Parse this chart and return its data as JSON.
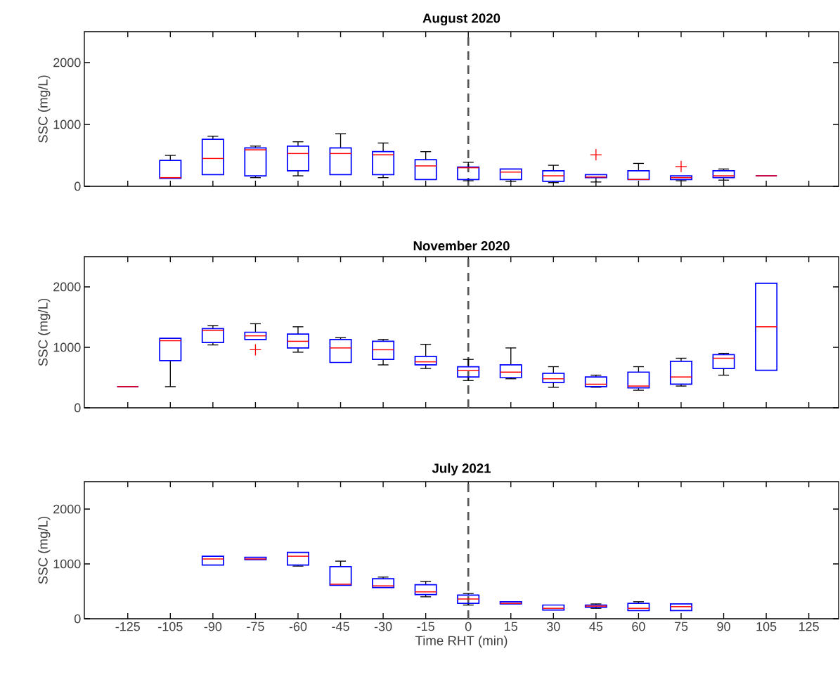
{
  "chart_data": [
    {
      "type": "box",
      "title": "August 2020",
      "ylabel": "SSC (mg/L)",
      "categories": [
        "-125",
        "-105",
        "-90",
        "-75",
        "-60",
        "-45",
        "-30",
        "-15",
        "0",
        "15",
        "30",
        "45",
        "60",
        "75",
        "90",
        "105",
        "125"
      ],
      "ylim": [
        0,
        2500
      ],
      "yticks": [
        0,
        1000,
        2000
      ],
      "tick_labels": "y",
      "ref_lines": [
        {
          "axis": "x",
          "value": "0",
          "color": "#555555",
          "line_style": "dashed"
        }
      ],
      "series": [
        {
          "color": "#0000ff",
          "boxes": [
            null,
            {
              "low": 130,
              "q1": 130,
              "median": 140,
              "q3": 420,
              "high": 500
            },
            {
              "low": 190,
              "q1": 190,
              "median": 450,
              "q3": 760,
              "high": 810
            },
            {
              "low": 140,
              "q1": 170,
              "median": 590,
              "q3": 620,
              "high": 650
            },
            {
              "low": 170,
              "q1": 250,
              "median": 530,
              "q3": 650,
              "high": 720
            },
            {
              "low": 190,
              "q1": 190,
              "median": 530,
              "q3": 620,
              "high": 850
            },
            {
              "low": 140,
              "q1": 190,
              "median": 510,
              "q3": 560,
              "high": 700
            },
            {
              "low": 110,
              "q1": 110,
              "median": 330,
              "q3": 430,
              "high": 560
            },
            {
              "low": 90,
              "q1": 110,
              "median": 300,
              "q3": 310,
              "high": 390
            },
            {
              "low": 80,
              "q1": 110,
              "median": 230,
              "q3": 280,
              "high": 280
            },
            {
              "low": 60,
              "q1": 80,
              "median": 170,
              "q3": 250,
              "high": 340
            },
            {
              "low": 70,
              "q1": 140,
              "median": 150,
              "q3": 190,
              "high": 190,
              "outliers": [
                510
              ]
            },
            {
              "low": 110,
              "q1": 110,
              "median": 110,
              "q3": 250,
              "high": 370
            },
            {
              "low": 90,
              "q1": 110,
              "median": 140,
              "q3": 170,
              "high": 170,
              "outliers": [
                320
              ]
            },
            {
              "low": 100,
              "q1": 140,
              "median": 170,
              "q3": 250,
              "high": 280
            },
            {
              "low": 170,
              "q1": 170,
              "median": 170,
              "q3": 170,
              "high": 170
            },
            null
          ]
        }
      ]
    },
    {
      "type": "box",
      "title": "November 2020",
      "ylabel": "SSC (mg/L)",
      "categories": [
        "-125",
        "-105",
        "-90",
        "-75",
        "-60",
        "-45",
        "-30",
        "-15",
        "0",
        "15",
        "30",
        "45",
        "60",
        "75",
        "90",
        "105",
        "125"
      ],
      "ylim": [
        0,
        2500
      ],
      "yticks": [
        0,
        1000,
        2000
      ],
      "tick_labels": "y",
      "ref_lines": [
        {
          "axis": "x",
          "value": "0",
          "color": "#555555",
          "line_style": "dashed"
        }
      ],
      "series": [
        {
          "color": "#0000ff",
          "boxes": [
            {
              "low": 350,
              "q1": 350,
              "median": 350,
              "q3": 350,
              "high": 350
            },
            {
              "low": 350,
              "q1": 780,
              "median": 1110,
              "q3": 1150,
              "high": 1150
            },
            {
              "low": 1040,
              "q1": 1080,
              "median": 1280,
              "q3": 1310,
              "high": 1360
            },
            {
              "low": 1130,
              "q1": 1130,
              "median": 1190,
              "q3": 1250,
              "high": 1390,
              "outliers": [
                960
              ]
            },
            {
              "low": 920,
              "q1": 990,
              "median": 1100,
              "q3": 1220,
              "high": 1340
            },
            {
              "low": 750,
              "q1": 750,
              "median": 990,
              "q3": 1130,
              "high": 1160
            },
            {
              "low": 710,
              "q1": 800,
              "median": 960,
              "q3": 1100,
              "high": 1130
            },
            {
              "low": 650,
              "q1": 710,
              "median": 760,
              "q3": 850,
              "high": 1050
            },
            {
              "low": 450,
              "q1": 510,
              "median": 620,
              "q3": 680,
              "high": 800
            },
            {
              "low": 480,
              "q1": 500,
              "median": 590,
              "q3": 710,
              "high": 990
            },
            {
              "low": 340,
              "q1": 420,
              "median": 480,
              "q3": 570,
              "high": 680
            },
            {
              "low": 340,
              "q1": 350,
              "median": 390,
              "q3": 510,
              "high": 540
            },
            {
              "low": 290,
              "q1": 330,
              "median": 360,
              "q3": 590,
              "high": 680
            },
            {
              "low": 360,
              "q1": 390,
              "median": 510,
              "q3": 770,
              "high": 820
            },
            {
              "low": 540,
              "q1": 650,
              "median": 820,
              "q3": 880,
              "high": 900
            },
            {
              "low": 620,
              "q1": 620,
              "median": 1340,
              "q3": 2060,
              "high": 2060
            },
            null
          ]
        }
      ]
    },
    {
      "type": "box",
      "title": "July 2021",
      "ylabel": "SSC (mg/L)",
      "xlabel": "Time RHT (min)",
      "categories": [
        "-125",
        "-105",
        "-90",
        "-75",
        "-60",
        "-45",
        "-30",
        "-15",
        "0",
        "15",
        "30",
        "45",
        "60",
        "75",
        "90",
        "105",
        "125"
      ],
      "ylim": [
        0,
        2500
      ],
      "yticks": [
        0,
        1000,
        2000
      ],
      "ref_lines": [
        {
          "axis": "x",
          "value": "0",
          "color": "#555555",
          "line_style": "dashed"
        }
      ],
      "series": [
        {
          "color": "#0000ff",
          "boxes": [
            null,
            null,
            {
              "low": 980,
              "q1": 980,
              "median": 1090,
              "q3": 1140,
              "high": 1140
            },
            {
              "low": 1080,
              "q1": 1080,
              "median": 1090,
              "q3": 1120,
              "high": 1120
            },
            {
              "low": 960,
              "q1": 980,
              "median": 1140,
              "q3": 1210,
              "high": 1210
            },
            {
              "low": 610,
              "q1": 610,
              "median": 630,
              "q3": 950,
              "high": 1050
            },
            {
              "low": 570,
              "q1": 570,
              "median": 600,
              "q3": 730,
              "high": 760
            },
            {
              "low": 400,
              "q1": 440,
              "median": 490,
              "q3": 620,
              "high": 680
            },
            {
              "low": 250,
              "q1": 280,
              "median": 360,
              "q3": 430,
              "high": 460
            },
            {
              "low": 270,
              "q1": 270,
              "median": 280,
              "q3": 310,
              "high": 310
            },
            {
              "low": 160,
              "q1": 160,
              "median": 190,
              "q3": 250,
              "high": 250
            },
            {
              "low": 190,
              "q1": 210,
              "median": 230,
              "q3": 250,
              "high": 270
            },
            {
              "low": 150,
              "q1": 150,
              "median": 190,
              "q3": 280,
              "high": 310
            },
            {
              "low": 150,
              "q1": 150,
              "median": 220,
              "q3": 270,
              "high": 270
            },
            null,
            null,
            null
          ]
        }
      ]
    }
  ]
}
